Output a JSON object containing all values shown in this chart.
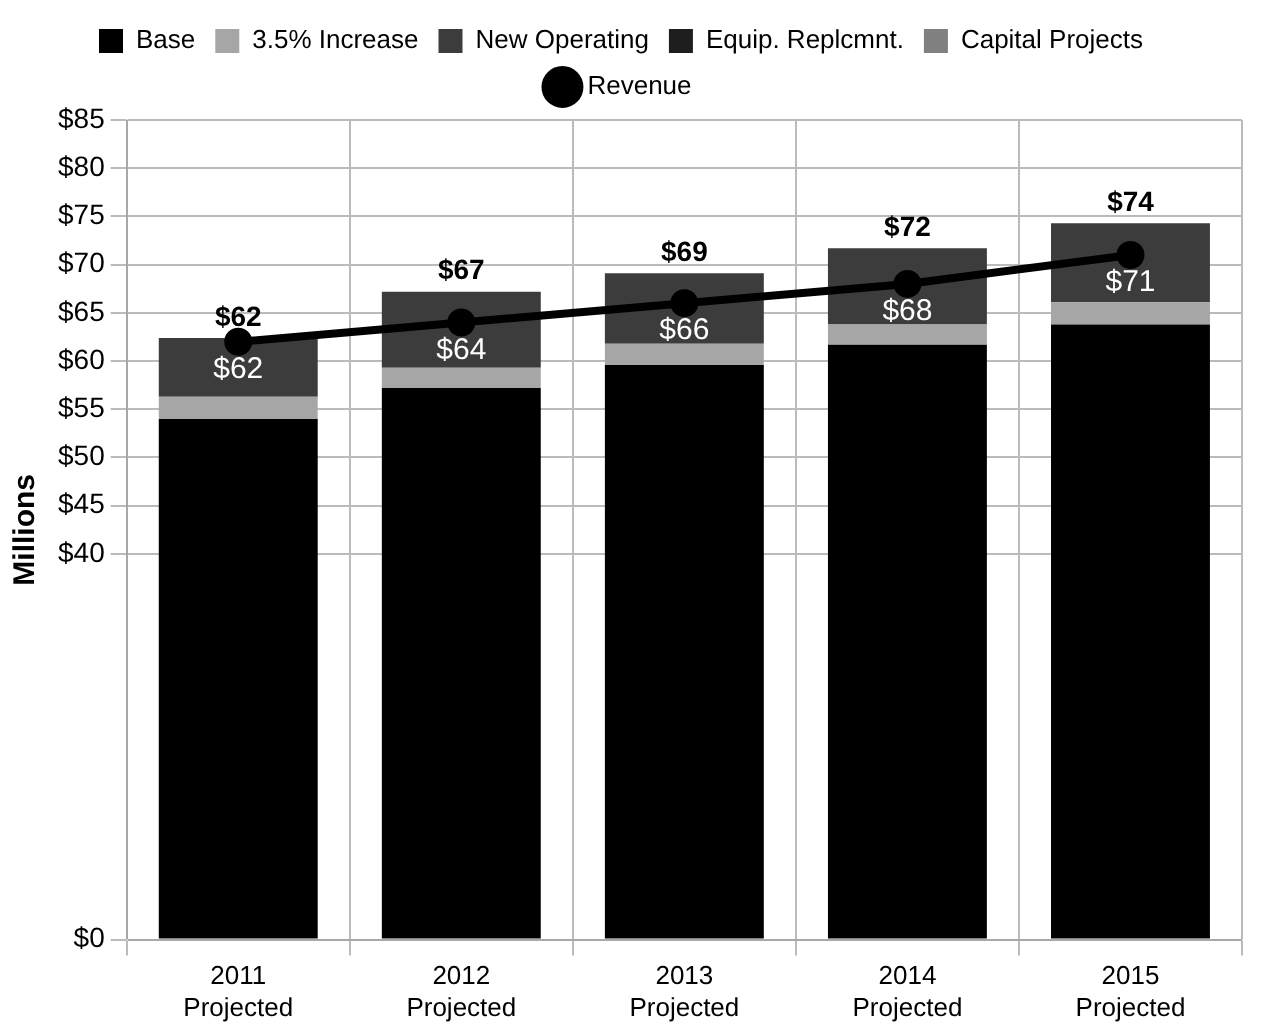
{
  "chart_data": {
    "type": "bar",
    "stacked": true,
    "ylabel": "Millions",
    "categories": [
      "2011 Projected",
      "2012 Projected",
      "2013 Projected",
      "2014 Projected",
      "2015 Projected"
    ],
    "series": [
      {
        "name": "Base",
        "color": "#000000",
        "values": [
          54.0,
          57.2,
          59.6,
          61.7,
          63.8
        ]
      },
      {
        "name": "3.5% Increase",
        "color": "#a6a6a6",
        "values": [
          2.3,
          2.1,
          2.2,
          2.1,
          2.3
        ]
      },
      {
        "name": "New Operating",
        "color": "#3c3c3c",
        "values": [
          6.1,
          7.9,
          7.3,
          7.9,
          8.2
        ]
      },
      {
        "name": "Equip. Replcmnt.",
        "color": "#1e1e1e",
        "values": [
          null,
          null,
          null,
          null,
          null
        ]
      },
      {
        "name": "Capital Projects",
        "color": "#808080",
        "values": [
          null,
          null,
          null,
          null,
          null
        ]
      },
      {
        "name": "Revenue",
        "type": "line",
        "color": "#000000",
        "marker": "circle",
        "values": [
          62,
          64,
          66,
          68,
          71
        ],
        "value_labels": [
          "$62",
          "$64",
          "$66",
          "$68",
          "$71"
        ]
      }
    ],
    "totals": [
      "$62",
      "$67",
      "$69",
      "$72",
      "$74"
    ],
    "ylim": [
      0,
      85
    ],
    "yticks": [
      {
        "value": 0,
        "label": "$0"
      },
      {
        "value": 40,
        "label": "$40"
      },
      {
        "value": 45,
        "label": "$45"
      },
      {
        "value": 50,
        "label": "$50"
      },
      {
        "value": 55,
        "label": "$55"
      },
      {
        "value": 60,
        "label": "$60"
      },
      {
        "value": 65,
        "label": "$65"
      },
      {
        "value": 70,
        "label": "$70"
      },
      {
        "value": 75,
        "label": "$75"
      },
      {
        "value": 80,
        "label": "$80"
      },
      {
        "value": 85,
        "label": "$85"
      }
    ],
    "grid": true,
    "legend": "top"
  }
}
